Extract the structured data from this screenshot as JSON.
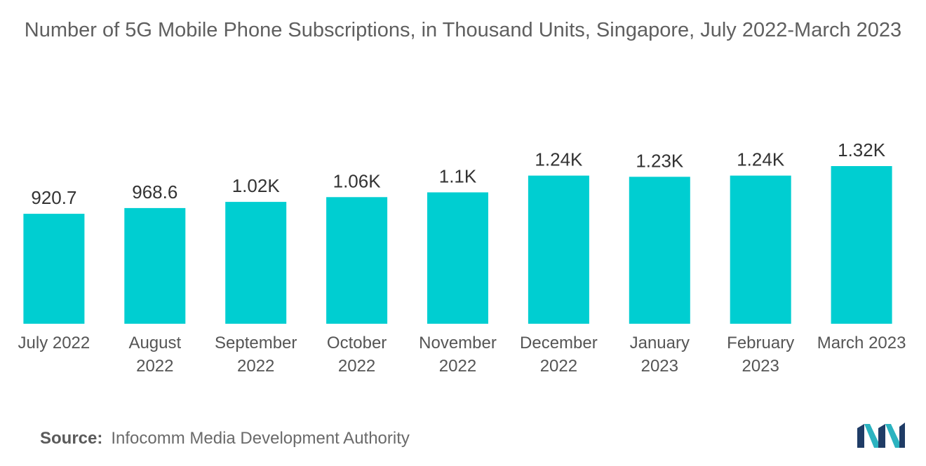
{
  "chart_data": {
    "type": "bar",
    "title": "Number of 5G Mobile Phone Subscriptions, in Thousand Units, Singapore, July 2022-March 2023",
    "categories": [
      [
        "July 2022"
      ],
      [
        "August",
        "2022"
      ],
      [
        "September",
        "2022"
      ],
      [
        "October",
        "2022"
      ],
      [
        "November",
        "2022"
      ],
      [
        "December",
        "2022"
      ],
      [
        "January",
        "2023"
      ],
      [
        "February",
        "2023"
      ],
      [
        "March 2023"
      ]
    ],
    "values": [
      920.7,
      968.6,
      1020,
      1060,
      1100,
      1240,
      1230,
      1240,
      1320
    ],
    "data_labels": [
      "920.7",
      "968.6",
      "1.02K",
      "1.06K",
      "1.1K",
      "1.24K",
      "1.23K",
      "1.24K",
      "1.32K"
    ],
    "xlabel": "",
    "ylabel": "",
    "y_axis_visible": false,
    "grid": false,
    "bar_color": "#00ced1"
  },
  "source": {
    "label": "Source:",
    "text": "Infocomm Media Development Authority"
  },
  "logo": {
    "icon": "mordor-intelligence-logo-icon",
    "colors": [
      "#1f3c66",
      "#2bb3c0"
    ]
  }
}
